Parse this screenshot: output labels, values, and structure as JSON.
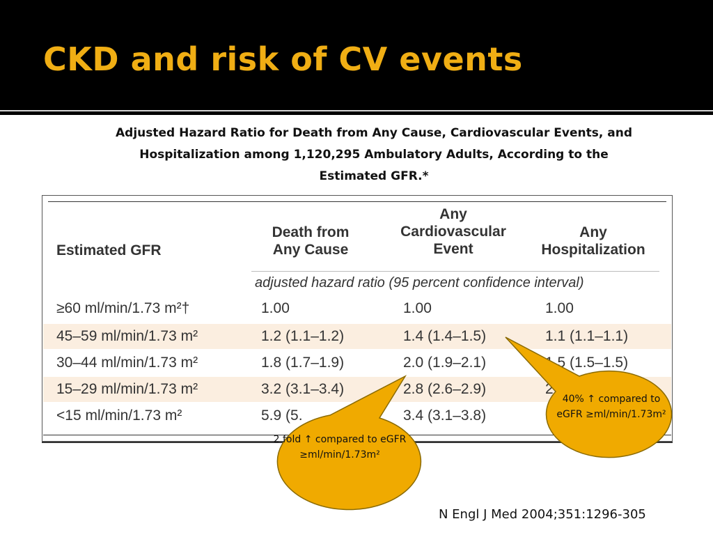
{
  "slide": {
    "title": "CKD and risk of CV events",
    "caption": "Adjusted Hazard Ratio for Death from Any Cause, Cardiovascular Events, and Hospitalization among 1,120,295 Ambulatory Adults, According to the Estimated GFR.*",
    "citation": "N Engl J Med 2004;351:1296-305",
    "colors": {
      "title_bar": "#000000",
      "title_text": "#f0ae14",
      "callout_fill": "#f0aa00",
      "callout_stroke": "#8a6a00",
      "row_shade": "#fbeee0"
    }
  },
  "table": {
    "headers": {
      "gfr": "Estimated GFR",
      "death": "Death from\nAny Cause",
      "cv": "Any\nCardiovascular\nEvent",
      "hosp": "Any\nHospitalization"
    },
    "subheader": "adjusted hazard ratio (95 percent confidence interval)",
    "rows": [
      {
        "gfr": "≥60 ml/min/1.73 m²†",
        "death": "1.00",
        "cv": "1.00",
        "hosp": "1.00"
      },
      {
        "gfr": "45–59 ml/min/1.73 m²",
        "death": "1.2 (1.1–1.2)",
        "cv": "1.4 (1.4–1.5)",
        "hosp": "1.1 (1.1–1.1)"
      },
      {
        "gfr": "30–44 ml/min/1.73 m²",
        "death": "1.8 (1.7–1.9)",
        "cv": "2.0 (1.9–2.1)",
        "hosp": "1.5 (1.5–1.5)"
      },
      {
        "gfr": "15–29 ml/min/1.73 m²",
        "death": "3.2 (3.1–3.4)",
        "cv": "2.8 (2.6–2.9)",
        "hosp": "2."
      },
      {
        "gfr": "<15 ml/min/1.73 m²",
        "death": "5.9 (5.",
        "cv": "3.4 (3.1–3.8)",
        "hosp": ""
      }
    ]
  },
  "callouts": {
    "forty_percent": "40% ↑ compared to eGFR ≥ml/min/1.73m²",
    "two_fold": "2 fold ↑ compared to eGFR ≥ml/min/1.73m²"
  }
}
